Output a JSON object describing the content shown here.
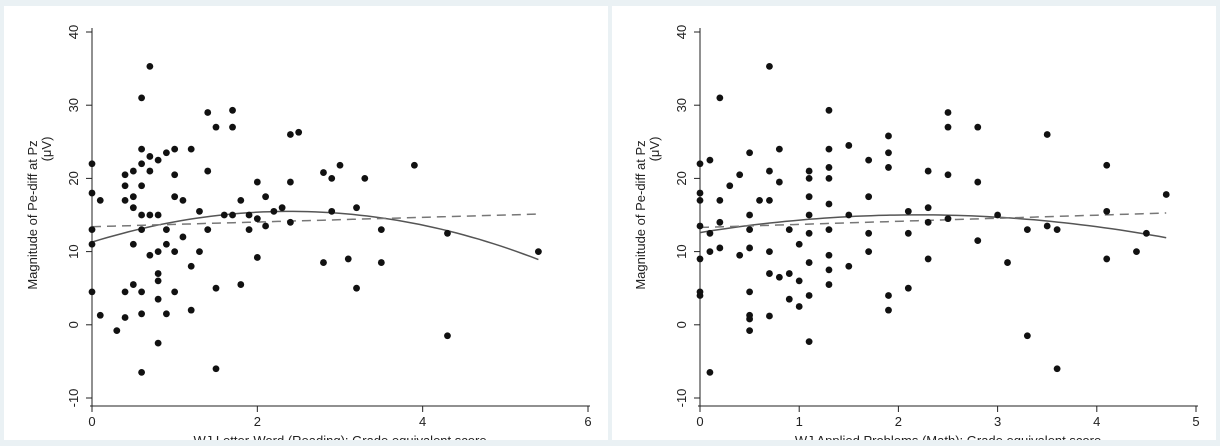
{
  "chart_data": [
    {
      "type": "scatter",
      "title": "",
      "xlabel": "WJ Letter-Word (Reading): Grade equivalent score",
      "ylabel": "Magnitude of Pe-diff at Pz",
      "ylabel2": "(μV)",
      "xlim": [
        0,
        6
      ],
      "ylim": [
        -10,
        40
      ],
      "xticks": [
        "0",
        "2",
        "4",
        "6"
      ],
      "yticks": [
        "-10",
        "0",
        "10",
        "20",
        "30",
        "40"
      ],
      "grid": false,
      "points": [
        [
          0,
          22
        ],
        [
          0,
          18
        ],
        [
          0,
          13
        ],
        [
          0,
          11
        ],
        [
          0,
          4.5
        ],
        [
          0.1,
          17
        ],
        [
          0.1,
          1.3
        ],
        [
          0.3,
          -0.8
        ],
        [
          0.4,
          20.5
        ],
        [
          0.4,
          19
        ],
        [
          0.4,
          17
        ],
        [
          0.4,
          4.5
        ],
        [
          0.4,
          1
        ],
        [
          0.5,
          21
        ],
        [
          0.5,
          17.5
        ],
        [
          0.5,
          16
        ],
        [
          0.5,
          11
        ],
        [
          0.5,
          5.5
        ],
        [
          0.6,
          31
        ],
        [
          0.6,
          24
        ],
        [
          0.6,
          22
        ],
        [
          0.6,
          19
        ],
        [
          0.6,
          15
        ],
        [
          0.6,
          13
        ],
        [
          0.6,
          4.5
        ],
        [
          0.6,
          1.5
        ],
        [
          0.6,
          -6.5
        ],
        [
          0.7,
          35.3
        ],
        [
          0.7,
          23
        ],
        [
          0.7,
          21
        ],
        [
          0.7,
          15
        ],
        [
          0.7,
          9.5
        ],
        [
          0.8,
          22.5
        ],
        [
          0.8,
          15
        ],
        [
          0.8,
          10
        ],
        [
          0.8,
          7
        ],
        [
          0.8,
          6
        ],
        [
          0.8,
          3.5
        ],
        [
          0.8,
          -2.5
        ],
        [
          0.9,
          23.5
        ],
        [
          0.9,
          13
        ],
        [
          0.9,
          11
        ],
        [
          0.9,
          1.5
        ],
        [
          1.0,
          24
        ],
        [
          1.0,
          20.5
        ],
        [
          1.0,
          17.5
        ],
        [
          1.0,
          10
        ],
        [
          1.0,
          4.5
        ],
        [
          1.1,
          17
        ],
        [
          1.1,
          12
        ],
        [
          1.2,
          24
        ],
        [
          1.2,
          8
        ],
        [
          1.2,
          2
        ],
        [
          1.3,
          15.5
        ],
        [
          1.3,
          10
        ],
        [
          1.4,
          29
        ],
        [
          1.4,
          21
        ],
        [
          1.4,
          13
        ],
        [
          1.5,
          27
        ],
        [
          1.5,
          5
        ],
        [
          1.5,
          -6
        ],
        [
          1.6,
          15
        ],
        [
          1.7,
          29.3
        ],
        [
          1.7,
          27
        ],
        [
          1.7,
          15
        ],
        [
          1.8,
          17
        ],
        [
          1.8,
          5.5
        ],
        [
          1.9,
          15
        ],
        [
          1.9,
          13
        ],
        [
          2.0,
          19.5
        ],
        [
          2.0,
          14.5
        ],
        [
          2.0,
          9.2
        ],
        [
          2.1,
          17.5
        ],
        [
          2.1,
          13.5
        ],
        [
          2.2,
          15.5
        ],
        [
          2.3,
          16
        ],
        [
          2.4,
          26
        ],
        [
          2.4,
          19.5
        ],
        [
          2.4,
          14
        ],
        [
          2.5,
          26.3
        ],
        [
          2.8,
          20.8
        ],
        [
          2.8,
          8.5
        ],
        [
          2.9,
          20
        ],
        [
          2.9,
          15.5
        ],
        [
          3.0,
          21.8
        ],
        [
          3.1,
          9
        ],
        [
          3.2,
          16
        ],
        [
          3.2,
          5
        ],
        [
          3.3,
          20
        ],
        [
          3.5,
          13
        ],
        [
          3.5,
          8.5
        ],
        [
          3.9,
          21.8
        ],
        [
          4.3,
          12.5
        ],
        [
          4.3,
          -1.5
        ],
        [
          5.4,
          10
        ]
      ],
      "fit_lines": [
        {
          "style": "solid",
          "curve": "quadratic",
          "coef": [
            11.3,
            3.5,
            -0.73
          ],
          "x_range": [
            0,
            5.4
          ]
        },
        {
          "style": "dashed",
          "curve": "linear",
          "coef": [
            13.4,
            0.32
          ],
          "x_range": [
            0,
            5.4
          ]
        }
      ]
    },
    {
      "type": "scatter",
      "title": "",
      "xlabel": "WJ Applied Problems (Math): Grade equivalent score",
      "ylabel": "Magnitude of Pe-diff at Pz",
      "ylabel2": "(μV)",
      "xlim": [
        0,
        5
      ],
      "ylim": [
        -10,
        40
      ],
      "xticks": [
        "0",
        "1",
        "2",
        "3",
        "4",
        "5"
      ],
      "yticks": [
        "-10",
        "0",
        "10",
        "20",
        "30",
        "40"
      ],
      "grid": false,
      "points": [
        [
          0,
          22
        ],
        [
          0,
          18
        ],
        [
          0,
          17
        ],
        [
          0,
          13.5
        ],
        [
          0,
          9
        ],
        [
          0,
          4.5
        ],
        [
          0,
          4
        ],
        [
          0.1,
          22.5
        ],
        [
          0.1,
          12.5
        ],
        [
          0.1,
          10
        ],
        [
          0.1,
          -6.5
        ],
        [
          0.2,
          31
        ],
        [
          0.2,
          17
        ],
        [
          0.2,
          14
        ],
        [
          0.2,
          10.5
        ],
        [
          0.3,
          19
        ],
        [
          0.4,
          20.5
        ],
        [
          0.4,
          9.5
        ],
        [
          0.5,
          23.5
        ],
        [
          0.5,
          15
        ],
        [
          0.5,
          13
        ],
        [
          0.5,
          10.5
        ],
        [
          0.5,
          4.5
        ],
        [
          0.5,
          1.3
        ],
        [
          0.5,
          0.8
        ],
        [
          0.5,
          -0.8
        ],
        [
          0.6,
          17
        ],
        [
          0.7,
          35.3
        ],
        [
          0.7,
          21
        ],
        [
          0.7,
          17
        ],
        [
          0.7,
          10
        ],
        [
          0.7,
          7
        ],
        [
          0.7,
          1.2
        ],
        [
          0.8,
          24
        ],
        [
          0.8,
          19.5
        ],
        [
          0.8,
          6.5
        ],
        [
          0.9,
          13
        ],
        [
          0.9,
          7
        ],
        [
          0.9,
          3.5
        ],
        [
          1.0,
          11
        ],
        [
          1.0,
          6
        ],
        [
          1.0,
          2.5
        ],
        [
          1.1,
          21
        ],
        [
          1.1,
          20
        ],
        [
          1.1,
          17.5
        ],
        [
          1.1,
          15
        ],
        [
          1.1,
          12.5
        ],
        [
          1.1,
          8.5
        ],
        [
          1.1,
          4
        ],
        [
          1.1,
          -2.3
        ],
        [
          1.3,
          29.3
        ],
        [
          1.3,
          24
        ],
        [
          1.3,
          21.5
        ],
        [
          1.3,
          20
        ],
        [
          1.3,
          16.5
        ],
        [
          1.3,
          13
        ],
        [
          1.3,
          9.5
        ],
        [
          1.3,
          7.5
        ],
        [
          1.3,
          5.5
        ],
        [
          1.5,
          24.5
        ],
        [
          1.5,
          15
        ],
        [
          1.5,
          8
        ],
        [
          1.7,
          22.5
        ],
        [
          1.7,
          17.5
        ],
        [
          1.7,
          12.5
        ],
        [
          1.7,
          10
        ],
        [
          1.9,
          25.8
        ],
        [
          1.9,
          23.5
        ],
        [
          1.9,
          21.5
        ],
        [
          1.9,
          4
        ],
        [
          1.9,
          2
        ],
        [
          2.1,
          15.5
        ],
        [
          2.1,
          12.5
        ],
        [
          2.1,
          5
        ],
        [
          2.3,
          21
        ],
        [
          2.3,
          16
        ],
        [
          2.3,
          14
        ],
        [
          2.3,
          9
        ],
        [
          2.5,
          29
        ],
        [
          2.5,
          27
        ],
        [
          2.5,
          20.5
        ],
        [
          2.5,
          14.5
        ],
        [
          2.8,
          27
        ],
        [
          2.8,
          19.5
        ],
        [
          2.8,
          11.5
        ],
        [
          3.0,
          15
        ],
        [
          3.1,
          8.5
        ],
        [
          3.3,
          13
        ],
        [
          3.3,
          -1.5
        ],
        [
          3.5,
          26
        ],
        [
          3.5,
          13.5
        ],
        [
          3.6,
          13
        ],
        [
          3.6,
          -6
        ],
        [
          4.1,
          21.8
        ],
        [
          4.1,
          15.5
        ],
        [
          4.1,
          9
        ],
        [
          4.4,
          10
        ],
        [
          4.5,
          12.5
        ],
        [
          4.7,
          17.8
        ]
      ],
      "fit_lines": [
        {
          "style": "solid",
          "curve": "quadratic",
          "coef": [
            12.6,
            2.2,
            -0.5
          ],
          "x_range": [
            0,
            4.7
          ]
        },
        {
          "style": "dashed",
          "curve": "linear",
          "coef": [
            13.3,
            0.42
          ],
          "x_range": [
            0,
            4.7
          ]
        }
      ]
    }
  ]
}
